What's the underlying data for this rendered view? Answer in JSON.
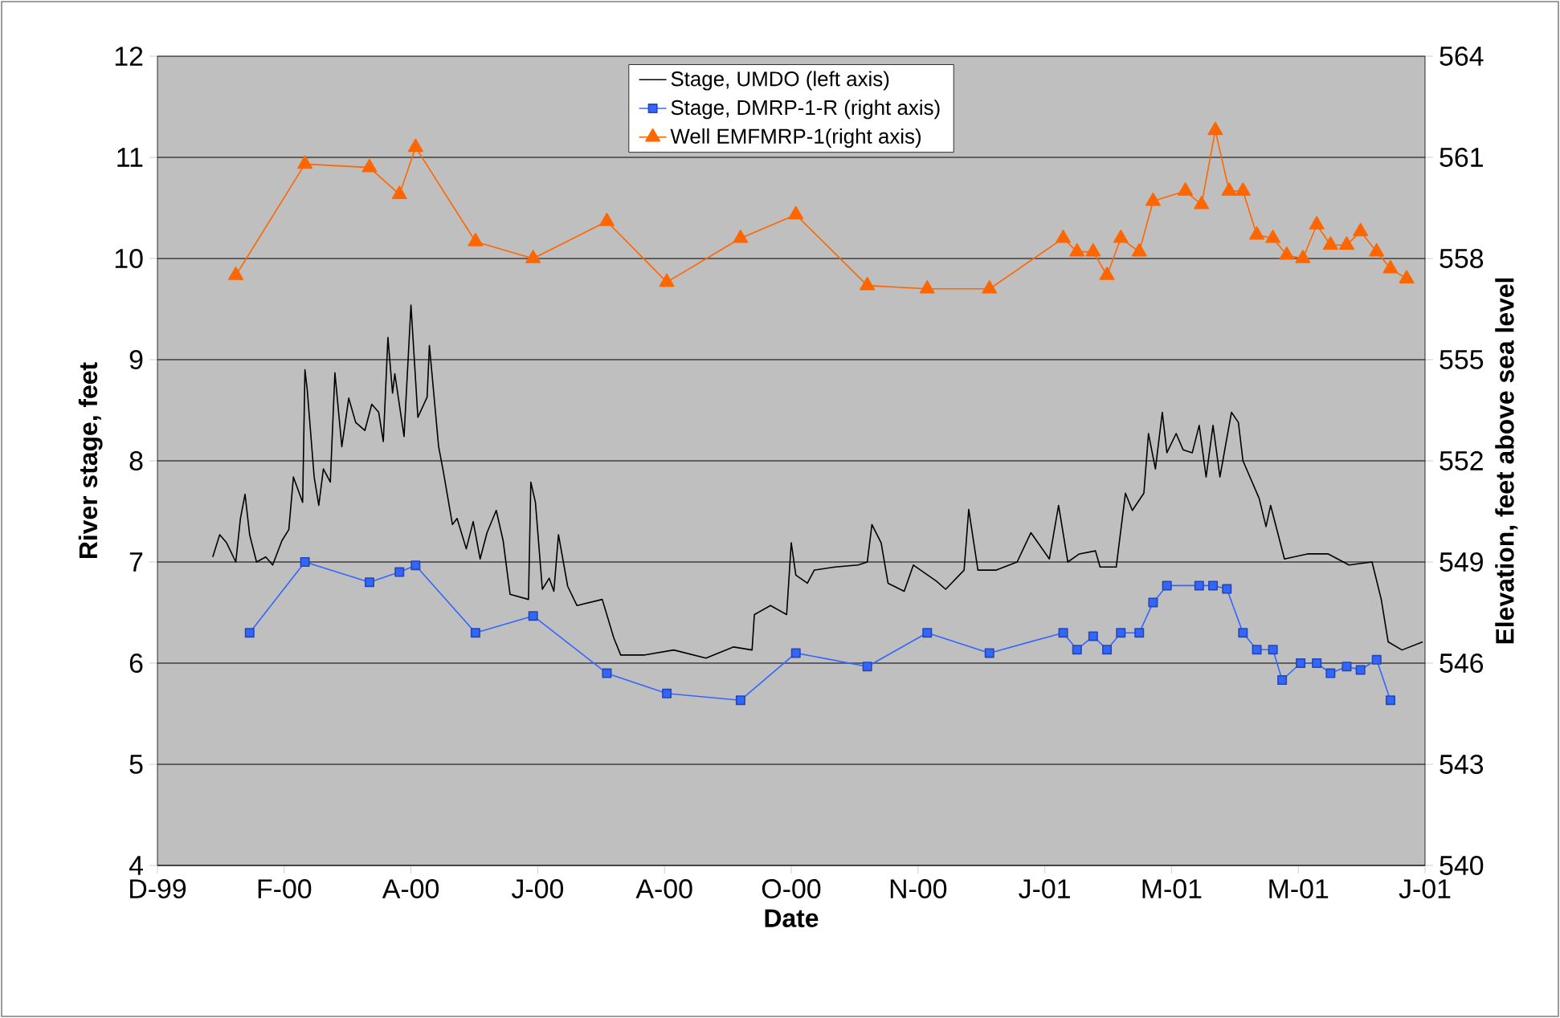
{
  "chart_data": {
    "type": "line",
    "xlabel": "Date",
    "ylabel": "River stage, feet",
    "y2label": "Elevation, feet above sea level",
    "xlim": [
      "1999-12-31",
      "2001-07-03"
    ],
    "xticks": [
      {
        "value": "1999-12-31",
        "label": "D-99"
      },
      {
        "value": "2000-02-24",
        "label": "F-00"
      },
      {
        "value": "2000-04-19",
        "label": "A-00"
      },
      {
        "value": "2000-06-13",
        "label": "J-00"
      },
      {
        "value": "2000-08-07",
        "label": "A-00"
      },
      {
        "value": "2000-10-01",
        "label": "O-00"
      },
      {
        "value": "2000-11-25",
        "label": "N-00"
      },
      {
        "value": "2001-01-19",
        "label": "J-01"
      },
      {
        "value": "2001-03-15",
        "label": "M-01"
      },
      {
        "value": "2001-05-09",
        "label": "M-01"
      },
      {
        "value": "2001-07-03",
        "label": "J-01"
      }
    ],
    "ylim": [
      4,
      12
    ],
    "yticks": [
      4,
      5,
      6,
      7,
      8,
      9,
      10,
      11,
      12
    ],
    "y2lim": [
      540,
      564
    ],
    "y2ticks": [
      540,
      543,
      546,
      549,
      552,
      555,
      558,
      561,
      564
    ],
    "grid": "y",
    "legend": "top",
    "series": [
      {
        "name": "Stage, UMDO (left axis)",
        "color": "#000000",
        "marker": "none",
        "axis": "y",
        "x": [
          "2000-01-24",
          "2000-01-27",
          "2000-01-30",
          "2000-02-03",
          "2000-02-05",
          "2000-02-07",
          "2000-02-09",
          "2000-02-12",
          "2000-02-16",
          "2000-02-19",
          "2000-02-23",
          "2000-02-26",
          "2000-02-28",
          "2000-03-03",
          "2000-03-04",
          "2000-03-05",
          "2000-03-08",
          "2000-03-10",
          "2000-03-12",
          "2000-03-15",
          "2000-03-17",
          "2000-03-20",
          "2000-03-23",
          "2000-03-26",
          "2000-03-30",
          "2000-04-02",
          "2000-04-05",
          "2000-04-07",
          "2000-04-09",
          "2000-04-11",
          "2000-04-12",
          "2000-04-16",
          "2000-04-19",
          "2000-04-22",
          "2000-04-26",
          "2000-04-27",
          "2000-05-01",
          "2000-05-03",
          "2000-05-07",
          "2000-05-09",
          "2000-05-13",
          "2000-05-16",
          "2000-05-19",
          "2000-05-22",
          "2000-05-26",
          "2000-05-29",
          "2000-06-01",
          "2000-06-09",
          "2000-06-10",
          "2000-06-12",
          "2000-06-15",
          "2000-06-18",
          "2000-06-20",
          "2000-06-22",
          "2000-06-26",
          "2000-06-30",
          "2000-07-11",
          "2000-07-16",
          "2000-07-19",
          "2000-07-29",
          "2000-08-11",
          "2000-08-25",
          "2000-09-06",
          "2000-09-14",
          "2000-09-15",
          "2000-09-22",
          "2000-09-29",
          "2000-10-01",
          "2000-10-03",
          "2000-10-08",
          "2000-10-11",
          "2000-10-20",
          "2000-10-30",
          "2000-11-03",
          "2000-11-05",
          "2000-11-09",
          "2000-11-12",
          "2000-11-19",
          "2000-11-23",
          "2000-12-03",
          "2000-12-07",
          "2000-12-15",
          "2000-12-17",
          "2000-12-21",
          "2000-12-29",
          "2001-01-07",
          "2001-01-13",
          "2001-01-21",
          "2001-01-25",
          "2001-01-29",
          "2001-02-03",
          "2001-02-10",
          "2001-02-12",
          "2001-02-19",
          "2001-02-23",
          "2001-02-26",
          "2001-03-03",
          "2001-03-05",
          "2001-03-08",
          "2001-03-11",
          "2001-03-13",
          "2001-03-17",
          "2001-03-20",
          "2001-03-24",
          "2001-03-27",
          "2001-03-30",
          "2001-04-02",
          "2001-04-05",
          "2001-04-10",
          "2001-04-13",
          "2001-04-15",
          "2001-04-22",
          "2001-04-25",
          "2001-04-27",
          "2001-05-03",
          "2001-05-13",
          "2001-05-22",
          "2001-05-31",
          "2001-06-10",
          "2001-06-14",
          "2001-06-17",
          "2001-06-23",
          "2001-07-02"
        ],
        "values": [
          7.05,
          7.27,
          7.19,
          7.0,
          7.43,
          7.67,
          7.27,
          7.0,
          7.05,
          6.97,
          7.21,
          7.32,
          7.84,
          7.59,
          8.9,
          8.7,
          7.84,
          7.56,
          7.92,
          7.79,
          8.87,
          8.14,
          8.62,
          8.38,
          8.3,
          8.56,
          8.48,
          8.19,
          9.22,
          8.67,
          8.86,
          8.24,
          9.54,
          8.43,
          8.63,
          9.14,
          8.14,
          7.9,
          7.37,
          7.43,
          7.13,
          7.4,
          7.03,
          7.29,
          7.51,
          7.21,
          6.68,
          6.63,
          7.79,
          7.59,
          6.73,
          6.84,
          6.71,
          7.27,
          6.76,
          6.57,
          6.63,
          6.25,
          6.08,
          6.08,
          6.13,
          6.05,
          6.16,
          6.13,
          6.48,
          6.57,
          6.48,
          7.19,
          6.87,
          6.79,
          6.92,
          6.95,
          6.97,
          7.0,
          7.37,
          7.19,
          6.79,
          6.71,
          6.97,
          6.81,
          6.73,
          6.92,
          7.52,
          6.92,
          6.92,
          7.0,
          7.29,
          7.03,
          7.56,
          7.0,
          7.08,
          7.11,
          6.95,
          6.95,
          7.68,
          7.51,
          7.68,
          8.27,
          7.92,
          8.48,
          8.08,
          8.27,
          8.11,
          8.08,
          8.35,
          7.84,
          8.35,
          7.84,
          8.48,
          8.38,
          8.0,
          7.63,
          7.35,
          7.56,
          7.03,
          7.08,
          7.08,
          6.97,
          7.0,
          6.63,
          6.21,
          6.13,
          6.21
        ]
      },
      {
        "name": "Stage, DMRP-1-R (right axis)",
        "color": "#3366ff",
        "marker": "square",
        "axis": "y2",
        "x": [
          "2000-02-09",
          "2000-03-04",
          "2000-04-01",
          "2000-04-14",
          "2000-04-21",
          "2000-05-17",
          "2000-06-11",
          "2000-07-13",
          "2000-08-08",
          "2000-09-09",
          "2000-10-03",
          "2000-11-03",
          "2000-11-29",
          "2000-12-26",
          "2001-01-27",
          "2001-02-02",
          "2001-02-09",
          "2001-02-15",
          "2001-02-21",
          "2001-03-01",
          "2001-03-07",
          "2001-03-13",
          "2001-03-27",
          "2001-04-02",
          "2001-04-08",
          "2001-04-15",
          "2001-04-21",
          "2001-04-28",
          "2001-05-02",
          "2001-05-10",
          "2001-05-17",
          "2001-05-23",
          "2001-05-30",
          "2001-06-05",
          "2001-06-12",
          "2001-06-18"
        ],
        "values": [
          546.9,
          549.0,
          548.4,
          548.7,
          548.9,
          546.9,
          547.4,
          545.7,
          545.1,
          544.9,
          546.3,
          545.9,
          546.9,
          546.3,
          546.9,
          546.4,
          546.8,
          546.4,
          546.9,
          546.9,
          547.8,
          548.3,
          548.3,
          548.3,
          548.2,
          546.9,
          546.4,
          546.4,
          545.5,
          546.0,
          546.0,
          545.7,
          545.9,
          545.8,
          546.1,
          544.9
        ]
      },
      {
        "name": "Well EMFMRP-1(right axis)",
        "color": "#ff6600",
        "marker": "triangle",
        "axis": "y2",
        "x": [
          "2000-02-03",
          "2000-03-04",
          "2000-04-01",
          "2000-04-14",
          "2000-04-21",
          "2000-05-17",
          "2000-06-11",
          "2000-07-13",
          "2000-08-08",
          "2000-09-09",
          "2000-10-03",
          "2000-11-03",
          "2000-11-29",
          "2000-12-26",
          "2001-01-27",
          "2001-02-02",
          "2001-02-09",
          "2001-02-15",
          "2001-02-21",
          "2001-03-01",
          "2001-03-07",
          "2001-03-21",
          "2001-03-28",
          "2001-04-03",
          "2001-04-09",
          "2001-04-15",
          "2001-04-21",
          "2001-04-28",
          "2001-05-04",
          "2001-05-11",
          "2001-05-17",
          "2001-05-23",
          "2001-05-30",
          "2001-06-05",
          "2001-06-12",
          "2001-06-18",
          "2001-06-25"
        ],
        "values": [
          557.5,
          560.8,
          560.7,
          559.9,
          561.3,
          558.5,
          558.0,
          559.1,
          557.3,
          558.6,
          559.3,
          557.2,
          557.1,
          557.1,
          558.6,
          558.2,
          558.2,
          557.5,
          558.6,
          558.2,
          559.7,
          560.0,
          559.6,
          561.8,
          560.0,
          560.0,
          558.7,
          558.6,
          558.1,
          558.0,
          559.0,
          558.4,
          558.4,
          558.8,
          558.2,
          557.7,
          557.4
        ]
      }
    ]
  }
}
